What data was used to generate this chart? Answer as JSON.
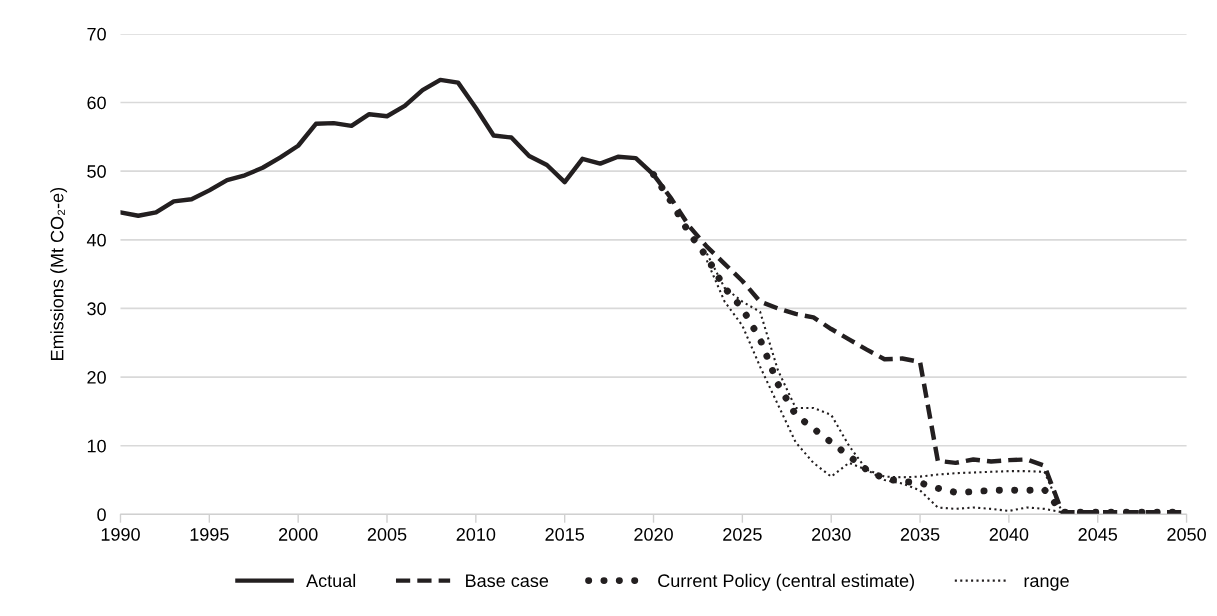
{
  "chart_data": {
    "type": "line",
    "ylabel": "Emissions (Mt CO₂-e)",
    "xlim": [
      1990,
      2050
    ],
    "xticks": [
      1990,
      1995,
      2000,
      2005,
      2010,
      2015,
      2020,
      2025,
      2030,
      2035,
      2040,
      2045,
      2050
    ],
    "ylim": [
      0,
      70
    ],
    "yticks": [
      0,
      10,
      20,
      30,
      40,
      50,
      60,
      70
    ],
    "grid": "y",
    "legend": "bottom",
    "marker": "none",
    "series": [
      {
        "name": "Actual",
        "color": "#231f20",
        "line_style": "solid",
        "x": [
          1990,
          1991,
          1992,
          1993,
          1994,
          1995,
          1996,
          1997,
          1998,
          1999,
          2000,
          2001,
          2002,
          2003,
          2004,
          2005,
          2006,
          2007,
          2008,
          2009,
          2010,
          2011,
          2012,
          2013,
          2014,
          2015,
          2016,
          2017,
          2018,
          2019,
          2020
        ],
        "values": [
          44,
          43.5,
          44,
          45.6,
          45.9,
          47.2,
          48.7,
          49.4,
          50.5,
          52,
          53.7,
          56.9,
          57,
          56.6,
          58.3,
          58,
          59.5,
          61.8,
          63.3,
          62.9,
          59.2,
          55.2,
          54.9,
          52.2,
          50.9,
          48.4,
          51.8,
          51.1,
          52.1,
          51.9,
          49.5
        ]
      },
      {
        "name": "Base case",
        "color": "#231f20",
        "line_style": "dashed",
        "x": [
          2020,
          2021,
          2022,
          2023,
          2024,
          2025,
          2026,
          2027,
          2028,
          2029,
          2030,
          2031,
          2032,
          2033,
          2034,
          2035,
          2036,
          2037,
          2038,
          2039,
          2040,
          2041,
          2042,
          2043,
          2044,
          2045,
          2046,
          2047,
          2048,
          2049,
          2050
        ],
        "values": [
          49.5,
          46,
          42,
          39,
          36.5,
          34,
          31,
          30,
          29.2,
          28.7,
          27,
          25.5,
          24,
          22.6,
          22.7,
          22.2,
          7.8,
          7.5,
          8,
          7.7,
          7.9,
          8,
          7.1,
          0.3,
          0.3,
          0.3,
          0.3,
          0.3,
          0.3,
          0.3,
          0.3
        ]
      },
      {
        "name": "Current Policy (central estimate)",
        "color": "#231f20",
        "line_style": "dotted",
        "x": [
          2020,
          2021,
          2022,
          2023,
          2024,
          2025,
          2026,
          2027,
          2028,
          2029,
          2030,
          2031,
          2032,
          2033,
          2034,
          2035,
          2036,
          2037,
          2038,
          2039,
          2040,
          2041,
          2042,
          2043,
          2044,
          2045,
          2046,
          2047,
          2048,
          2049,
          2050
        ],
        "values": [
          49.5,
          45.5,
          41,
          37.5,
          33,
          30,
          25.5,
          19,
          14.5,
          12.5,
          10.5,
          8.5,
          6.5,
          5.2,
          4.8,
          4.6,
          3.8,
          3.2,
          3.3,
          3.5,
          3.5,
          3.5,
          3.6,
          0.3,
          0.3,
          0.3,
          0.3,
          0.3,
          0.3,
          0.3,
          0.3
        ]
      },
      {
        "name": "range",
        "color": "#231f20",
        "line_style": "fine",
        "x": [
          2023,
          2024,
          2025,
          2026,
          2027,
          2028,
          2029,
          2030,
          2031,
          2032,
          2033,
          2034,
          2035,
          2036,
          2037,
          2038,
          2039,
          2040,
          2041,
          2042,
          2043
        ],
        "values": [
          38,
          33,
          31,
          29.5,
          21,
          15.5,
          15.5,
          14.5,
          10,
          6.5,
          5.5,
          5.4,
          5.5,
          5.8,
          6,
          6.1,
          6.2,
          6.3,
          6.3,
          6.2,
          0.3
        ]
      },
      {
        "color": "#231f20",
        "line_style": "fine",
        "x": [
          2023,
          2024,
          2025,
          2026,
          2027,
          2028,
          2029,
          2030,
          2031,
          2032,
          2033,
          2034,
          2035,
          2036,
          2037,
          2038,
          2039,
          2040,
          2041,
          2042,
          2043
        ],
        "values": [
          37,
          31,
          27.5,
          21.5,
          16,
          10.5,
          7.5,
          5.5,
          7.5,
          6.5,
          5,
          4.5,
          3.5,
          1,
          0.8,
          1,
          0.8,
          0.5,
          1,
          0.8,
          0.3
        ]
      }
    ]
  }
}
